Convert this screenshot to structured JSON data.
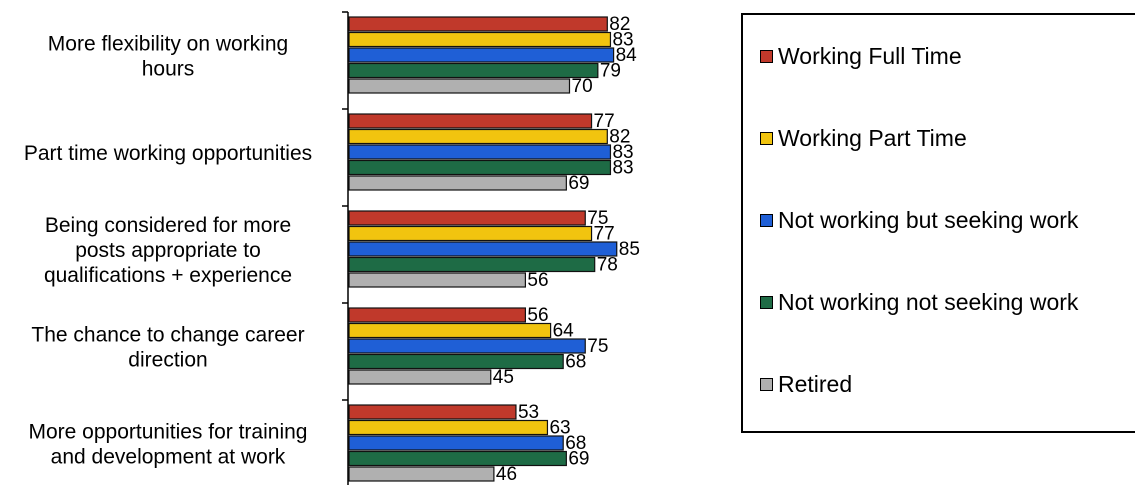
{
  "chart_data": {
    "type": "bar",
    "orientation": "horizontal",
    "categories": [
      [
        "More flexibility on working",
        "hours"
      ],
      [
        "Part time working opportunities"
      ],
      [
        "Being considered for more",
        "posts appropriate to",
        "qualifications + experience"
      ],
      [
        "The chance to change career",
        "direction"
      ],
      [
        "More opportunities for training",
        "and development at work"
      ]
    ],
    "series": [
      {
        "name": "Working Full Time",
        "color": "#c0392b",
        "values": [
          82,
          77,
          75,
          56,
          53
        ]
      },
      {
        "name": "Working Part Time",
        "color": "#f1c40f",
        "values": [
          83,
          82,
          77,
          64,
          63
        ]
      },
      {
        "name": "Not working but seeking work",
        "color": "#1f5fd6",
        "values": [
          84,
          83,
          85,
          75,
          68
        ]
      },
      {
        "name": "Not working not seeking work",
        "color": "#1e6b45",
        "values": [
          79,
          83,
          78,
          68,
          69
        ]
      },
      {
        "name": "Retired",
        "color": "#b0b0b0",
        "values": [
          70,
          69,
          56,
          45,
          46
        ]
      }
    ],
    "xlim": [
      0,
      100
    ],
    "grid": false,
    "legend_position": "right",
    "data_labels": true
  }
}
